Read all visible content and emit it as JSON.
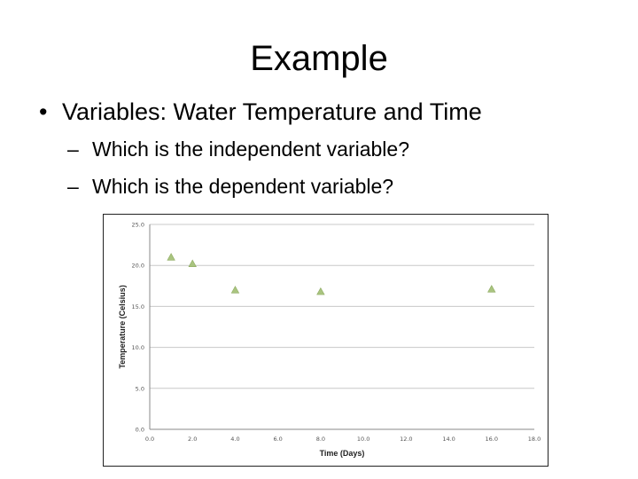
{
  "slide": {
    "title": "Example",
    "bullet": {
      "marker": "•",
      "text": "Variables: Water Temperature and Time"
    },
    "sub_bullets": [
      {
        "marker": "–",
        "text": "Which is the independent variable?"
      },
      {
        "marker": "–",
        "text": "Which is the dependent variable?"
      }
    ]
  },
  "chart_data": {
    "type": "scatter",
    "title": "",
    "xlabel": "Time (Days)",
    "ylabel": "Temperature (Celsius)",
    "xlim": [
      0,
      18
    ],
    "ylim": [
      0,
      25
    ],
    "x_ticks": [
      "0.0",
      "2.0",
      "4.0",
      "6.0",
      "8.0",
      "10.0",
      "12.0",
      "14.0",
      "16.0",
      "18.0"
    ],
    "y_ticks": [
      "0.0",
      "5.0",
      "10.0",
      "15.0",
      "20.0",
      "25.0"
    ],
    "grid": "horizontal",
    "marker": "triangle",
    "marker_color": "#a9c47f",
    "series": [
      {
        "points": [
          {
            "x": 1,
            "y": 21.0
          },
          {
            "x": 2,
            "y": 20.2
          },
          {
            "x": 4,
            "y": 17.0
          },
          {
            "x": 8,
            "y": 16.8
          },
          {
            "x": 16,
            "y": 17.1
          }
        ]
      }
    ]
  }
}
